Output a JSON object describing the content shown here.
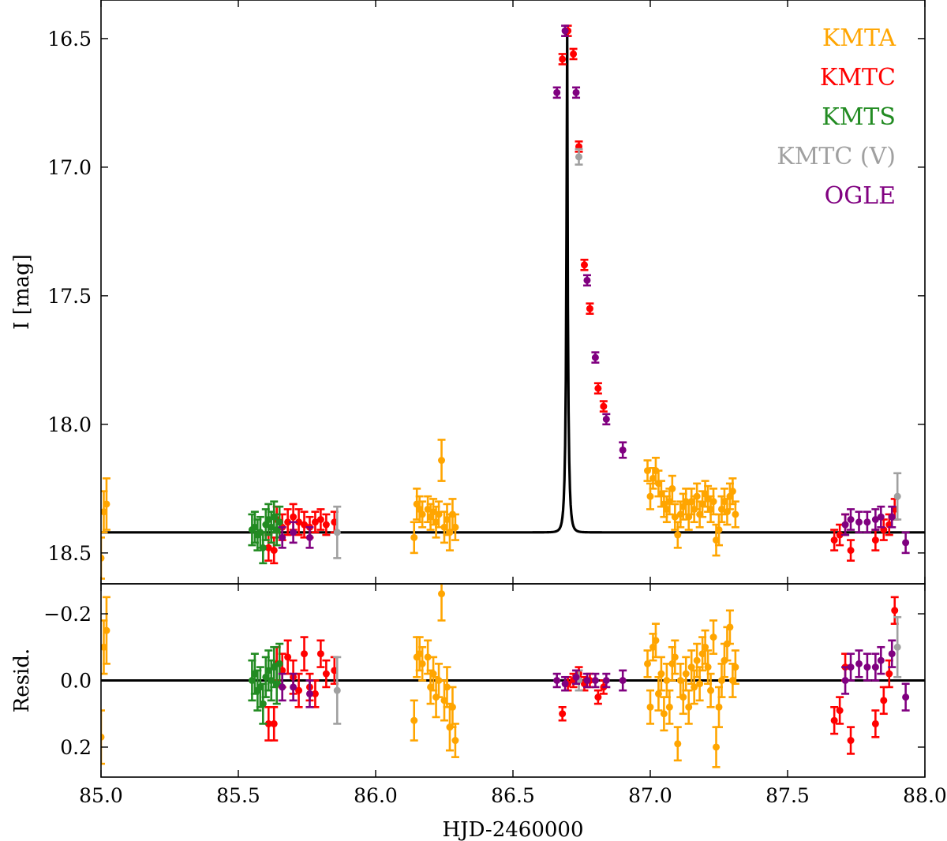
{
  "chart_data": {
    "type": "scatter",
    "x_label": "HJD-2460000",
    "panels": [
      {
        "id": "main",
        "ylabel": "I [mag]",
        "ylim": [
          18.62,
          16.35
        ],
        "y_inverted": true,
        "yticks": [
          16.5,
          17.0,
          17.5,
          18.0,
          18.5
        ],
        "ytick_labels": [
          "16.5",
          "17.0",
          "17.5",
          "18.0",
          "18.5"
        ]
      },
      {
        "id": "residual",
        "ylabel": "Resid.",
        "ylim": [
          0.29,
          -0.29
        ],
        "y_inverted": true,
        "yticks": [
          -0.2,
          0.0,
          0.2
        ],
        "ytick_labels": [
          "−0.2",
          "0.0",
          "0.2"
        ]
      }
    ],
    "xlim": [
      85.0,
      88.0
    ],
    "xticks": [
      85.0,
      85.5,
      86.0,
      86.5,
      87.0,
      87.5,
      88.0
    ],
    "xtick_labels": [
      "85.0",
      "85.5",
      "86.0",
      "86.5",
      "87.0",
      "87.5",
      "88.0"
    ],
    "model": {
      "description": "point-lens fit",
      "t0": 86.697,
      "baseline_mag": 18.42,
      "peak_mag": 16.47,
      "color": "#000000"
    },
    "series": [
      {
        "name": "KMTA",
        "color": "#FFA500",
        "points": [
          [
            85.0,
            18.52,
            0.08,
            0.17
          ],
          [
            85.01,
            18.34,
            0.08,
            -0.1
          ],
          [
            85.02,
            18.31,
            0.1,
            -0.15
          ],
          [
            86.14,
            18.44,
            0.06,
            0.12
          ],
          [
            86.15,
            18.31,
            0.06,
            -0.07
          ],
          [
            86.16,
            18.33,
            0.05,
            -0.08
          ],
          [
            86.17,
            18.35,
            0.05,
            -0.05
          ],
          [
            86.19,
            18.33,
            0.05,
            -0.07
          ],
          [
            86.2,
            18.36,
            0.05,
            0.02
          ],
          [
            86.21,
            18.34,
            0.05,
            -0.02
          ],
          [
            86.22,
            18.38,
            0.06,
            0.05
          ],
          [
            86.23,
            18.35,
            0.05,
            0.0
          ],
          [
            86.24,
            18.14,
            0.08,
            -0.26
          ],
          [
            86.25,
            18.4,
            0.06,
            0.06
          ],
          [
            86.26,
            18.37,
            0.06,
            0.02
          ],
          [
            86.27,
            18.42,
            0.07,
            0.14
          ],
          [
            86.28,
            18.35,
            0.06,
            0.08
          ],
          [
            86.29,
            18.4,
            0.05,
            0.18
          ],
          [
            86.99,
            18.18,
            0.04,
            -0.05
          ],
          [
            87.0,
            18.28,
            0.05,
            0.08
          ],
          [
            87.01,
            18.21,
            0.04,
            -0.1
          ],
          [
            87.02,
            18.18,
            0.05,
            -0.12
          ],
          [
            87.03,
            18.23,
            0.05,
            0.04
          ],
          [
            87.04,
            18.27,
            0.05,
            -0.02
          ],
          [
            87.05,
            18.31,
            0.05,
            0.1
          ],
          [
            87.06,
            18.33,
            0.05,
            0.0
          ],
          [
            87.07,
            18.3,
            0.05,
            0.08
          ],
          [
            87.08,
            18.25,
            0.05,
            -0.05
          ],
          [
            87.09,
            18.36,
            0.05,
            -0.07
          ],
          [
            87.1,
            18.43,
            0.05,
            0.19
          ],
          [
            87.11,
            18.35,
            0.05,
            0.0
          ],
          [
            87.12,
            18.32,
            0.05,
            0.05
          ],
          [
            87.13,
            18.3,
            0.05,
            -0.02
          ],
          [
            87.14,
            18.36,
            0.05,
            0.08
          ],
          [
            87.15,
            18.3,
            0.05,
            -0.04
          ],
          [
            87.16,
            18.33,
            0.05,
            0.02
          ],
          [
            87.17,
            18.28,
            0.05,
            -0.06
          ],
          [
            87.18,
            18.35,
            0.05,
            0.01
          ],
          [
            87.19,
            18.31,
            0.05,
            -0.08
          ],
          [
            87.2,
            18.27,
            0.05,
            -0.1
          ],
          [
            87.21,
            18.29,
            0.05,
            -0.04
          ],
          [
            87.22,
            18.33,
            0.05,
            0.03
          ],
          [
            87.23,
            18.3,
            0.05,
            -0.13
          ],
          [
            87.24,
            18.45,
            0.06,
            0.2
          ],
          [
            87.25,
            18.41,
            0.06,
            0.08
          ],
          [
            87.26,
            18.33,
            0.05,
            0.0
          ],
          [
            87.27,
            18.3,
            0.05,
            -0.06
          ],
          [
            87.28,
            18.34,
            0.05,
            -0.11
          ],
          [
            87.29,
            18.28,
            0.05,
            -0.16
          ],
          [
            87.3,
            18.26,
            0.05,
            0.0
          ],
          [
            87.31,
            18.35,
            0.05,
            -0.04
          ]
        ]
      },
      {
        "name": "KMTC",
        "color": "#FF0000",
        "points": [
          [
            85.61,
            18.48,
            0.05,
            0.13
          ],
          [
            85.63,
            18.49,
            0.05,
            0.13
          ],
          [
            85.64,
            18.37,
            0.05,
            -0.05
          ],
          [
            85.66,
            18.4,
            0.05,
            -0.03
          ],
          [
            85.68,
            18.38,
            0.05,
            -0.07
          ],
          [
            85.7,
            18.36,
            0.05,
            -0.01
          ],
          [
            85.72,
            18.38,
            0.05,
            0.03
          ],
          [
            85.74,
            18.39,
            0.05,
            -0.08
          ],
          [
            85.76,
            18.4,
            0.04,
            0.02
          ],
          [
            85.78,
            18.38,
            0.04,
            0.04
          ],
          [
            85.8,
            18.37,
            0.04,
            -0.08
          ],
          [
            85.82,
            18.39,
            0.04,
            -0.02
          ],
          [
            85.85,
            18.38,
            0.04,
            -0.03
          ],
          [
            86.68,
            16.58,
            0.02,
            0.1
          ],
          [
            86.7,
            16.47,
            0.02,
            0.01
          ],
          [
            86.72,
            16.56,
            0.02,
            0.0
          ],
          [
            86.74,
            16.92,
            0.02,
            -0.02
          ],
          [
            86.76,
            17.38,
            0.02,
            0.01
          ],
          [
            86.78,
            17.55,
            0.02,
            0.0
          ],
          [
            86.81,
            17.86,
            0.02,
            0.05
          ],
          [
            86.83,
            17.93,
            0.02,
            0.02
          ],
          [
            87.67,
            18.45,
            0.04,
            0.12
          ],
          [
            87.69,
            18.43,
            0.04,
            0.09
          ],
          [
            87.71,
            18.39,
            0.04,
            -0.04
          ],
          [
            87.73,
            18.49,
            0.04,
            0.18
          ],
          [
            87.82,
            18.45,
            0.04,
            0.13
          ],
          [
            87.85,
            18.41,
            0.04,
            0.06
          ],
          [
            87.87,
            18.39,
            0.04,
            -0.02
          ],
          [
            87.89,
            18.33,
            0.04,
            -0.21
          ]
        ]
      },
      {
        "name": "KMTS",
        "color": "#228B22",
        "points": [
          [
            85.55,
            18.41,
            0.06,
            0.0
          ],
          [
            85.56,
            18.4,
            0.06,
            -0.02
          ],
          [
            85.57,
            18.43,
            0.06,
            0.03
          ],
          [
            85.58,
            18.42,
            0.06,
            0.02
          ],
          [
            85.59,
            18.48,
            0.06,
            0.07
          ],
          [
            85.6,
            18.39,
            0.06,
            -0.01
          ],
          [
            85.61,
            18.37,
            0.06,
            -0.03
          ],
          [
            85.62,
            18.4,
            0.06,
            0.0
          ],
          [
            85.63,
            18.36,
            0.06,
            -0.04
          ],
          [
            85.64,
            18.41,
            0.06,
            0.01
          ],
          [
            85.65,
            18.38,
            0.06,
            -0.05
          ]
        ]
      },
      {
        "name": "KMTC (V)",
        "color": "#A0A0A0",
        "points": [
          [
            85.86,
            18.42,
            0.1,
            0.03
          ],
          [
            86.74,
            16.96,
            0.03,
            0.0
          ],
          [
            87.9,
            18.28,
            0.09,
            -0.1
          ]
        ]
      },
      {
        "name": "OGLE",
        "color": "#800080",
        "points": [
          [
            85.66,
            18.44,
            0.04,
            0.02
          ],
          [
            85.7,
            18.42,
            0.04,
            0.02
          ],
          [
            85.76,
            18.44,
            0.04,
            0.04
          ],
          [
            86.66,
            16.71,
            0.02,
            0.0
          ],
          [
            86.69,
            16.47,
            0.02,
            0.01
          ],
          [
            86.73,
            16.71,
            0.02,
            -0.01
          ],
          [
            86.77,
            17.44,
            0.02,
            0.0
          ],
          [
            86.8,
            17.74,
            0.02,
            0.0
          ],
          [
            86.84,
            17.98,
            0.02,
            0.0
          ],
          [
            86.9,
            18.1,
            0.03,
            0.0
          ],
          [
            87.71,
            18.39,
            0.04,
            0.0
          ],
          [
            87.73,
            18.37,
            0.04,
            -0.04
          ],
          [
            87.76,
            18.38,
            0.04,
            -0.05
          ],
          [
            87.79,
            18.38,
            0.04,
            -0.04
          ],
          [
            87.82,
            18.37,
            0.04,
            -0.04
          ],
          [
            87.84,
            18.36,
            0.04,
            -0.06
          ],
          [
            87.88,
            18.36,
            0.04,
            -0.08
          ],
          [
            87.93,
            18.46,
            0.04,
            0.05
          ]
        ]
      }
    ]
  }
}
